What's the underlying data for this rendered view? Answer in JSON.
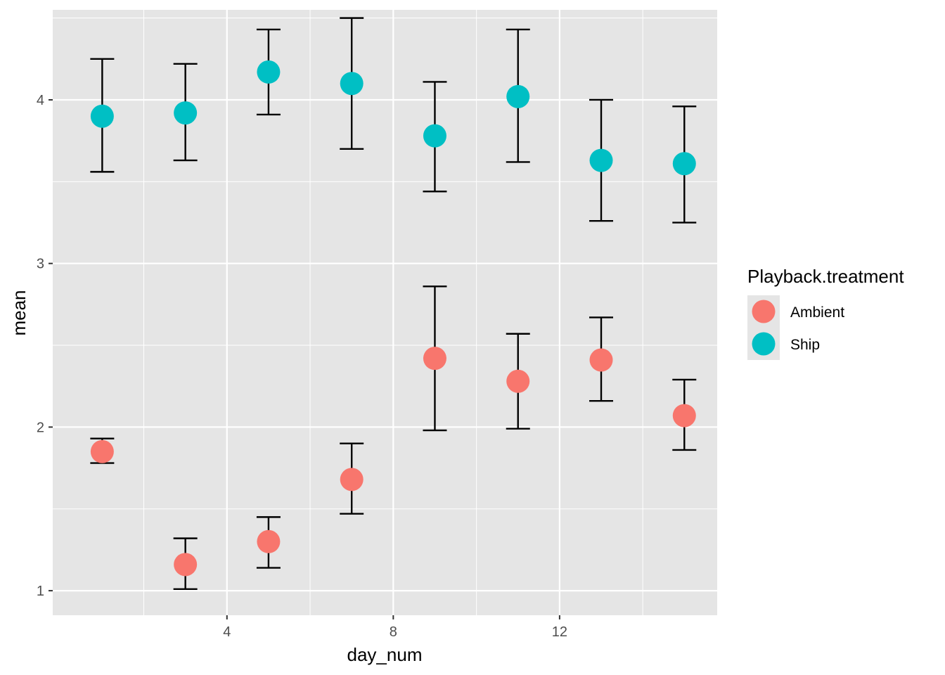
{
  "chart_data": {
    "type": "scatter",
    "xlabel": "day_num",
    "ylabel": "mean",
    "xlim": [
      -0.19,
      15.79
    ],
    "ylim": [
      0.85,
      4.55
    ],
    "x_ticks": [
      4,
      8,
      12
    ],
    "x_minor": [
      2,
      6,
      10,
      14
    ],
    "y_ticks": [
      1,
      2,
      3,
      4
    ],
    "y_minor": [
      1.5,
      2.5,
      3.5,
      4.5
    ],
    "grid": true,
    "panel_color": "#E5E5E5",
    "legend_position": "right",
    "legend_title": "Playback.treatment",
    "series": [
      {
        "name": "Ambient",
        "color": "#F8766D",
        "points": [
          {
            "x": 1,
            "y": 1.85,
            "ymin": 1.78,
            "ymax": 1.93
          },
          {
            "x": 3,
            "y": 1.16,
            "ymin": 1.01,
            "ymax": 1.32
          },
          {
            "x": 5,
            "y": 1.3,
            "ymin": 1.14,
            "ymax": 1.45
          },
          {
            "x": 7,
            "y": 1.68,
            "ymin": 1.47,
            "ymax": 1.9
          },
          {
            "x": 9,
            "y": 2.42,
            "ymin": 1.98,
            "ymax": 2.86
          },
          {
            "x": 11,
            "y": 2.28,
            "ymin": 1.99,
            "ymax": 2.57
          },
          {
            "x": 13,
            "y": 2.41,
            "ymin": 2.16,
            "ymax": 2.67
          },
          {
            "x": 15,
            "y": 2.07,
            "ymin": 1.86,
            "ymax": 2.29
          }
        ]
      },
      {
        "name": "Ship",
        "color": "#00BFC4",
        "points": [
          {
            "x": 1,
            "y": 3.9,
            "ymin": 3.56,
            "ymax": 4.25
          },
          {
            "x": 3,
            "y": 3.92,
            "ymin": 3.63,
            "ymax": 4.22
          },
          {
            "x": 5,
            "y": 4.17,
            "ymin": 3.91,
            "ymax": 4.43
          },
          {
            "x": 7,
            "y": 4.1,
            "ymin": 3.7,
            "ymax": 4.5
          },
          {
            "x": 9,
            "y": 3.78,
            "ymin": 3.44,
            "ymax": 4.11
          },
          {
            "x": 11,
            "y": 4.02,
            "ymin": 3.62,
            "ymax": 4.43
          },
          {
            "x": 13,
            "y": 3.63,
            "ymin": 3.26,
            "ymax": 4.0
          },
          {
            "x": 15,
            "y": 3.61,
            "ymin": 3.25,
            "ymax": 3.96
          }
        ]
      }
    ]
  }
}
